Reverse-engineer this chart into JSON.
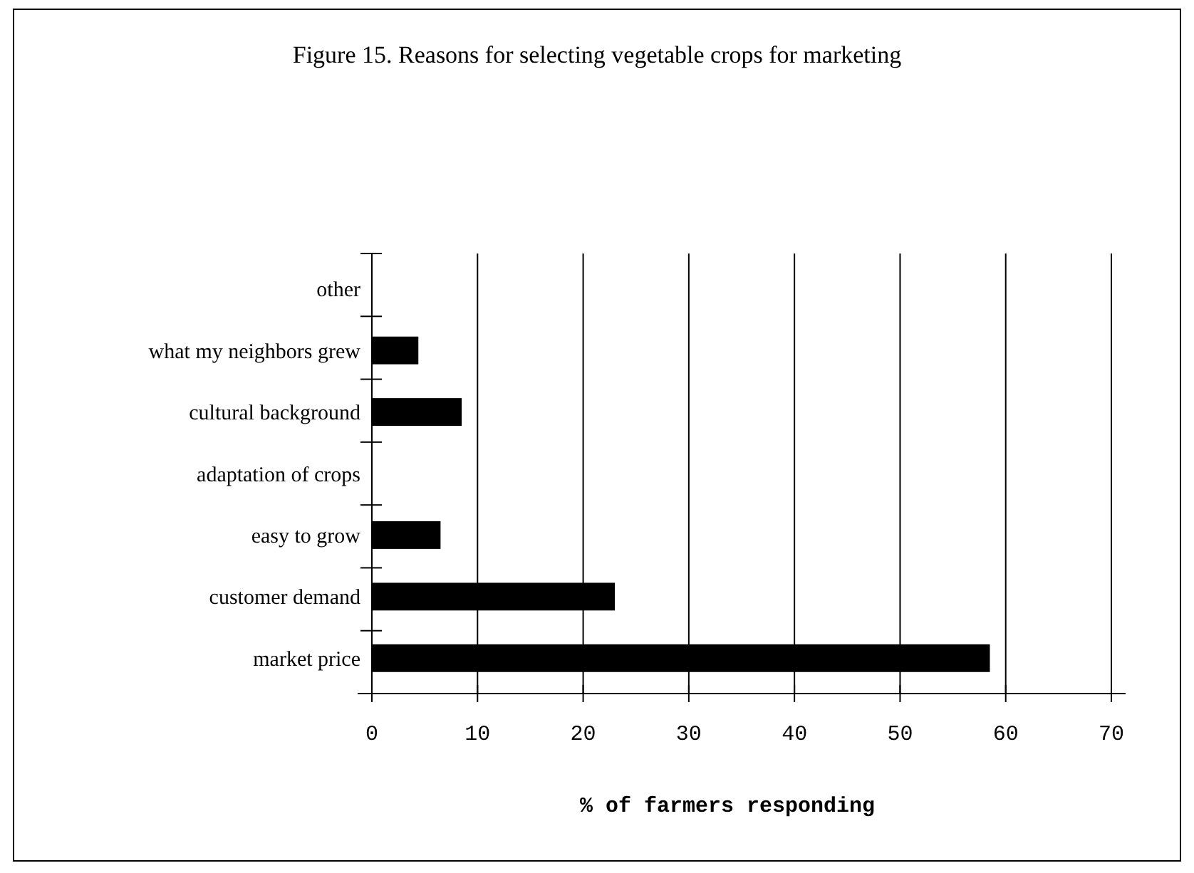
{
  "chart_data": {
    "type": "bar",
    "orientation": "horizontal",
    "title": "Figure 15. Reasons for selecting vegetable crops for marketing",
    "categories": [
      "other",
      "what my neighbors grew",
      "cultural background",
      "adaptation of crops",
      "easy to grow",
      "customer demand",
      "market price"
    ],
    "values": [
      0,
      4.4,
      8.5,
      0,
      6.5,
      23.0,
      58.5
    ],
    "color": "#000000",
    "xlim": [
      0,
      70
    ],
    "xticks": [
      0,
      10,
      20,
      30,
      40,
      50,
      60,
      70
    ],
    "grid": "x",
    "xlabel": "% of farmers responding"
  }
}
